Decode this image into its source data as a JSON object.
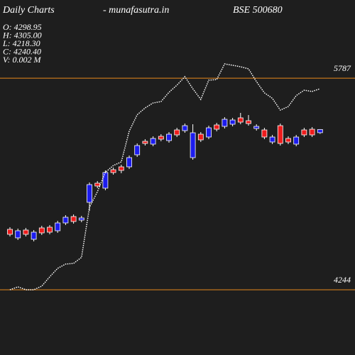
{
  "chart_data": {
    "type": "candlestick",
    "title": "Daily Charts",
    "site": "-  munafasutra.in",
    "symbol": "BSE 500680",
    "info": [
      "O: 4298.95",
      "H: 4305.00",
      "L: 4218.30",
      "C: 4240.40",
      "V: 0.002  M"
    ],
    "up_color": "#ee1c1c",
    "down_color": "#1c1cee",
    "wick_color": "#ffffff",
    "ylim": [
      170,
      6670
    ],
    "open": [
      2380,
      2445,
      2380,
      2419,
      2406,
      2419,
      2588,
      2692,
      2614,
      2679,
      3290,
      3264,
      3511,
      3511,
      3550,
      3784,
      4005,
      4044,
      4135,
      4122,
      4213,
      4200,
      4369,
      4239,
      4109,
      4330,
      4304,
      4486,
      4473,
      4434,
      4408,
      4356,
      4161,
      4161,
      4044,
      4070,
      4161,
      4200,
      4200,
      4298.95
    ],
    "high": [
      2510,
      2484,
      2497,
      2458,
      2536,
      2549,
      2627,
      2731,
      2744,
      2718,
      3329,
      3355,
      3550,
      3602,
      3654,
      3823,
      4044,
      4122,
      4174,
      4213,
      4252,
      4330,
      4408,
      4395,
      4252,
      4369,
      4421,
      4525,
      4512,
      4603,
      4564,
      4395,
      4330,
      4200,
      4408,
      4174,
      4200,
      4330,
      4343,
      4305
    ],
    "low": [
      2341,
      2276,
      2341,
      2250,
      2367,
      2380,
      2406,
      2549,
      2575,
      2601,
      2809,
      3225,
      3186,
      3472,
      3498,
      3576,
      3797,
      4005,
      3992,
      4083,
      4057,
      4161,
      4239,
      3745,
      4070,
      4122,
      4265,
      4317,
      4356,
      4395,
      4369,
      4278,
      4122,
      4031,
      4005,
      4031,
      3992,
      4161,
      4161,
      4218.3
    ],
    "close": [
      2471,
      2315,
      2458,
      2289,
      2497,
      2510,
      2445,
      2588,
      2705,
      2640,
      2965,
      3316,
      3225,
      3563,
      3615,
      3615,
      3836,
      4083,
      4031,
      4174,
      4096,
      4291,
      4278,
      3784,
      4213,
      4161,
      4382,
      4356,
      4395,
      4512,
      4460,
      4317,
      4291,
      4070,
      4369,
      4135,
      4031,
      4291,
      4304,
      4240.4
    ],
    "series": [
      {
        "axis": "y2",
        "color": "#ffffff",
        "values": [
          4244,
          4265,
          4244,
          4244,
          4270,
          4338,
          4400,
          4431,
          4436,
          4480,
          4845,
          4959,
          5100,
          5150,
          5176,
          5400,
          5520,
          5570,
          5606,
          5616,
          5684,
          5736,
          5798,
          5710,
          5632,
          5772,
          5777,
          5891,
          5881,
          5870,
          5855,
          5762,
          5680,
          5640,
          5554,
          5580,
          5660,
          5699,
          5690,
          5710
        ]
      }
    ],
    "y2lim": [
      3768,
      6357
    ],
    "y2ticks": [
      5787,
      4244
    ],
    "level_color": "#e8891c"
  }
}
